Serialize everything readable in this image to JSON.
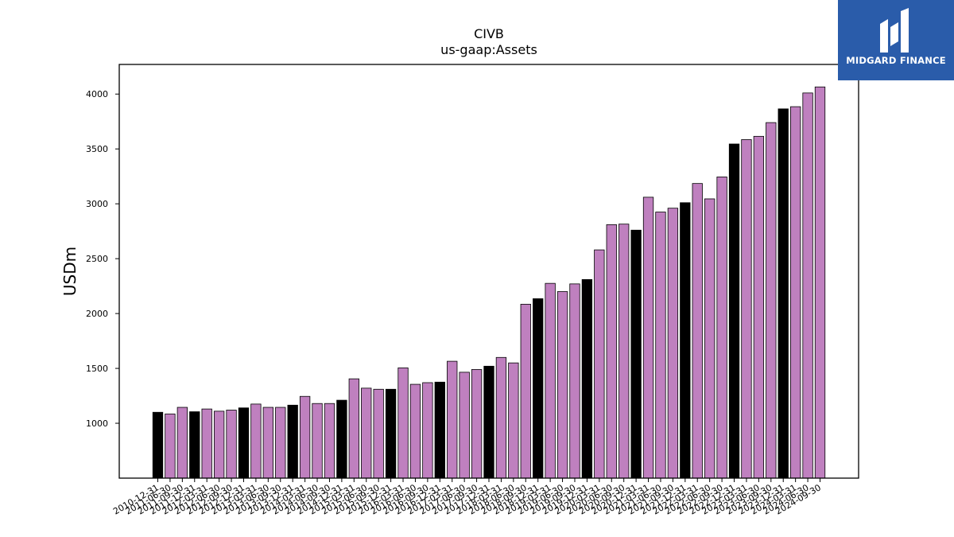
{
  "brand": {
    "name": "MIDGARD FINANCE"
  },
  "colors": {
    "highlight": "#000000",
    "bar": "#bf80bf",
    "logo_bg": "#2a5caa"
  },
  "chart_data": {
    "type": "bar",
    "title": "CIVB",
    "subtitle": "us-gaap:Assets",
    "xlabel": "",
    "ylabel": "USDm",
    "ylim": [
      500,
      4270
    ],
    "yticks": [
      1000,
      1500,
      2000,
      2500,
      3000,
      3500,
      4000
    ],
    "grid": false,
    "categories": [
      "2010-12-31",
      "2011-06-30",
      "2011-09-30",
      "2011-12-31",
      "2012-03-31",
      "2012-06-30",
      "2012-09-30",
      "2012-12-31",
      "2013-03-31",
      "2013-06-30",
      "2013-09-30",
      "2013-12-31",
      "2014-03-31",
      "2014-06-30",
      "2014-09-30",
      "2014-12-31",
      "2015-03-31",
      "2015-06-30",
      "2015-09-30",
      "2015-12-31",
      "2016-03-31",
      "2016-06-30",
      "2016-09-30",
      "2016-12-31",
      "2017-03-31",
      "2017-06-30",
      "2017-09-30",
      "2017-12-31",
      "2018-03-31",
      "2018-06-30",
      "2018-09-30",
      "2018-12-31",
      "2019-03-31",
      "2019-06-30",
      "2019-09-30",
      "2019-12-31",
      "2020-03-31",
      "2020-06-30",
      "2020-09-30",
      "2020-12-31",
      "2021-03-31",
      "2021-06-30",
      "2021-09-30",
      "2021-12-31",
      "2022-03-31",
      "2022-06-30",
      "2022-09-30",
      "2022-12-31",
      "2023-03-31",
      "2023-06-30",
      "2023-09-30",
      "2023-12-31",
      "2024-03-31",
      "2024-06-30",
      "2024-09-30"
    ],
    "values": [
      1100,
      1085,
      1145,
      1105,
      1130,
      1110,
      1120,
      1140,
      1175,
      1145,
      1145,
      1165,
      1245,
      1180,
      1180,
      1210,
      1405,
      1320,
      1310,
      1310,
      1505,
      1355,
      1370,
      1375,
      1565,
      1465,
      1490,
      1520,
      1600,
      1550,
      2085,
      2135,
      2275,
      2200,
      2270,
      2310,
      2580,
      2810,
      2815,
      2760,
      3060,
      2925,
      2960,
      3010,
      3185,
      3045,
      3245,
      3545,
      3585,
      3615,
      3740,
      3865,
      3885,
      4010,
      4065
    ],
    "year_end_highlight": true
  }
}
